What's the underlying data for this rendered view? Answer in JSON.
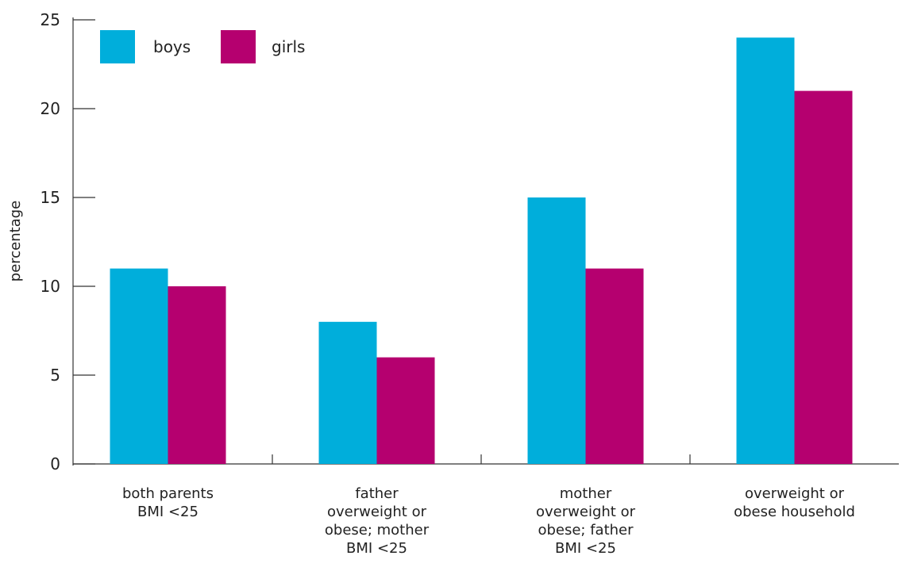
{
  "chart_data": {
    "type": "bar",
    "title": "",
    "xlabel": "",
    "ylabel": "percentage",
    "ylim": [
      0,
      25
    ],
    "yticks": [
      0,
      5,
      10,
      15,
      20,
      25
    ],
    "grid": false,
    "legend_position": "top-left",
    "categories": [
      [
        "both parents",
        "BMI <25"
      ],
      [
        "father",
        "overweight or",
        "obese; mother",
        "BMI <25"
      ],
      [
        "mother",
        "overweight or",
        "obese; father",
        "BMI <25"
      ],
      [
        "overweight or",
        "obese household"
      ]
    ],
    "series": [
      {
        "name": "boys",
        "color": "#00aedb",
        "values": [
          11,
          8,
          15,
          24
        ]
      },
      {
        "name": "girls",
        "color": "#b5006f",
        "values": [
          10,
          6,
          11,
          21
        ]
      }
    ]
  }
}
